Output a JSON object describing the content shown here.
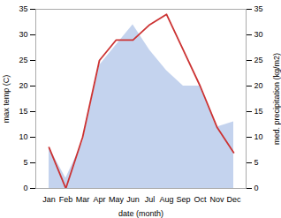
{
  "chart_data": {
    "type": "line",
    "categories": [
      "Jan",
      "Feb",
      "Mar",
      "Apr",
      "May",
      "Jun",
      "Jul",
      "Aug",
      "Sep",
      "Oct",
      "Nov",
      "Dec"
    ],
    "series": [
      {
        "type": "area",
        "axis": "y2",
        "color": "#b0c4e8",
        "values": [
          8,
          2,
          9,
          24,
          28,
          32,
          27,
          23,
          20,
          20,
          12,
          13
        ]
      },
      {
        "type": "line",
        "color": "#cc3333",
        "values": [
          8,
          0,
          10,
          25,
          29,
          29,
          32,
          34,
          27,
          20,
          12,
          7
        ]
      }
    ],
    "xlabel": "date (month)",
    "ylabel": "max temp (C)",
    "y2label": "med. precipitation (kg/m2)",
    "ylim": [
      0,
      35
    ],
    "yticks": [
      0,
      5,
      10,
      15,
      20,
      25,
      30,
      35
    ],
    "y2lim": [
      0,
      35
    ],
    "y2ticks": [
      0,
      5,
      10,
      15,
      20,
      25,
      30,
      35
    ],
    "grid": false
  }
}
